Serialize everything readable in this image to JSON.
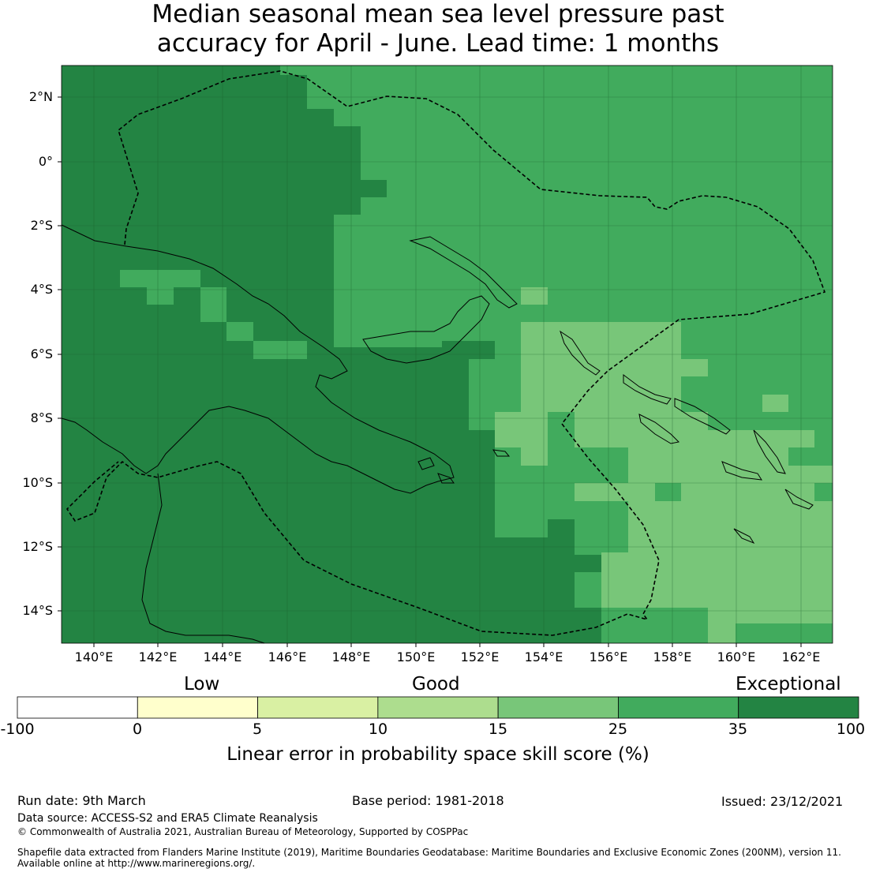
{
  "title": {
    "line1": "Median seasonal mean sea level pressure past",
    "line2": "accuracy for April - June. Lead time: 1 months"
  },
  "map": {
    "lat_labels": [
      "2°N",
      "0°",
      "2°S",
      "4°S",
      "6°S",
      "8°S",
      "10°S",
      "12°S",
      "14°S"
    ],
    "lon_labels": [
      "140°E",
      "142°E",
      "144°E",
      "146°E",
      "148°E",
      "150°E",
      "152°E",
      "154°E",
      "156°E",
      "158°E",
      "160°E",
      "162°E"
    ]
  },
  "legend": {
    "categories": [
      "Low",
      "Good",
      "Exceptional"
    ],
    "ticks": [
      "-100",
      "0",
      "5",
      "10",
      "15",
      "25",
      "35",
      "100"
    ],
    "colors": [
      "#ffffff",
      "#ffffcc",
      "#d9f0a3",
      "#addd8e",
      "#78c679",
      "#41ab5d",
      "#238443"
    ],
    "title": "Linear error in probability space skill score (%)"
  },
  "footer": {
    "run_date": "Run date: 9th March",
    "base_period": "Base period: 1981-2018",
    "issued": "Issued: 23/12/2021",
    "data_source": "Data source: ACCESS-S2 and ERA5 Climate Reanalysis",
    "copyright": "© Commonwealth of Australia 2021, Australian Bureau of Meteorology, Supported by COSPPac",
    "shapefile_line1": "Shapefile data extracted from Flanders Marine Institute (2019), Maritime Boundaries Geodatabase: Maritime Boundaries and Exclusive Economic Zones (200NM), version 11.",
    "shapefile_line2": "Available online at http://www.marineregions.org/."
  }
}
